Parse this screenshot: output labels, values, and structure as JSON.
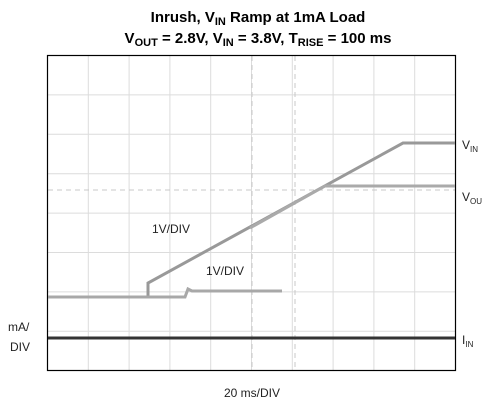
{
  "chart_data": {
    "type": "scope",
    "title": [
      [
        {
          "text": "Inrush, V"
        },
        {
          "sub": "IN"
        },
        {
          "text": " Ramp at 1mA Load"
        }
      ],
      [
        {
          "text": "V"
        },
        {
          "sub": "OUT"
        },
        {
          "text": " = 2.8V, V"
        },
        {
          "sub": "IN"
        },
        {
          "text": " = 3.8V, T"
        },
        {
          "sub": "RISE"
        },
        {
          "text": " = 100 ms"
        }
      ]
    ],
    "trace_labels": [
      [
        {
          "text": "V"
        },
        {
          "sub": "IN"
        }
      ],
      [
        {
          "text": "V"
        },
        {
          "sub": "OU"
        }
      ],
      [
        {
          "text": "I"
        },
        {
          "sub": "IN"
        }
      ]
    ],
    "scale_labels": [
      "1V/DIV",
      "1V/DIV"
    ],
    "current_scale": [
      "mA/",
      "DIV"
    ],
    "time_scale": "20 ms/DIV"
  }
}
